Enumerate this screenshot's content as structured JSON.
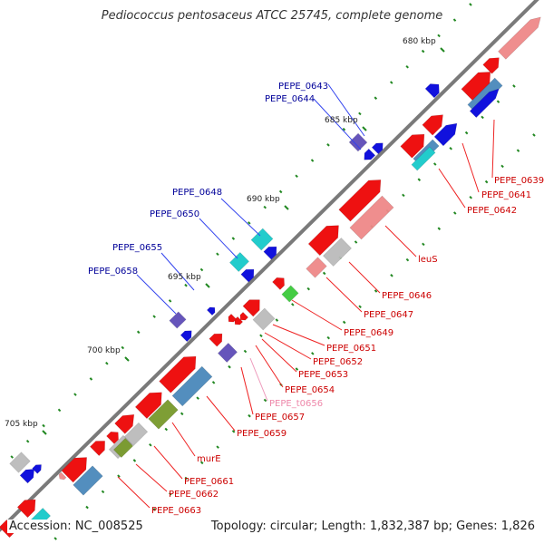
{
  "title": "Pediococcus pentosaceus ATCC 25745, complete genome",
  "footer": {
    "accession": "Accession: NC_008525",
    "summary": "Topology: circular; Length: 1,832,387 bp; Genes: 1,826"
  },
  "colors": {
    "backbone": "#7a7a7a",
    "red": "#ee1111",
    "pink": "#ee8888",
    "blue": "#1111dd",
    "purple": "#6655bb",
    "cyan": "#22cccc",
    "steel": "#4a88bb",
    "olive": "#77992a",
    "gray": "#bbbbbb",
    "tick": "#228822",
    "label_red": "#cc0000",
    "label_blue": "#000099",
    "label_pink": "#ee88aa"
  },
  "scale": [
    {
      "text": "680 kbp"
    },
    {
      "text": "685 kbp"
    },
    {
      "text": "690 kbp"
    },
    {
      "text": "695 kbp"
    },
    {
      "text": "700 kbp"
    },
    {
      "text": "705 kbp"
    }
  ],
  "gene_labels": [
    {
      "text": "PEPE_0643",
      "color": "blue"
    },
    {
      "text": "PEPE_0644",
      "color": "blue"
    },
    {
      "text": "PEPE_0648",
      "color": "blue"
    },
    {
      "text": "PEPE_0650",
      "color": "blue"
    },
    {
      "text": "PEPE_0655",
      "color": "blue"
    },
    {
      "text": "PEPE_0658",
      "color": "blue"
    },
    {
      "text": "PEPE_0639",
      "color": "red"
    },
    {
      "text": "PEPE_0641",
      "color": "red"
    },
    {
      "text": "PEPE_0642",
      "color": "red"
    },
    {
      "text": "leuS",
      "color": "red"
    },
    {
      "text": "PEPE_0646",
      "color": "red"
    },
    {
      "text": "PEPE_0647",
      "color": "red"
    },
    {
      "text": "PEPE_0649",
      "color": "red"
    },
    {
      "text": "PEPE_0651",
      "color": "red"
    },
    {
      "text": "PEPE_0652",
      "color": "red"
    },
    {
      "text": "PEPE_0653",
      "color": "red"
    },
    {
      "text": "PEPE_0654",
      "color": "red"
    },
    {
      "text": "PEPE_t0656",
      "color": "pink"
    },
    {
      "text": "PEPE_0657",
      "color": "red"
    },
    {
      "text": "PEPE_0659",
      "color": "red"
    },
    {
      "text": "murE",
      "color": "red"
    },
    {
      "text": "PEPE_0661",
      "color": "red"
    },
    {
      "text": "PEPE_0662",
      "color": "red"
    },
    {
      "text": "PEPE_0663",
      "color": "red"
    }
  ]
}
